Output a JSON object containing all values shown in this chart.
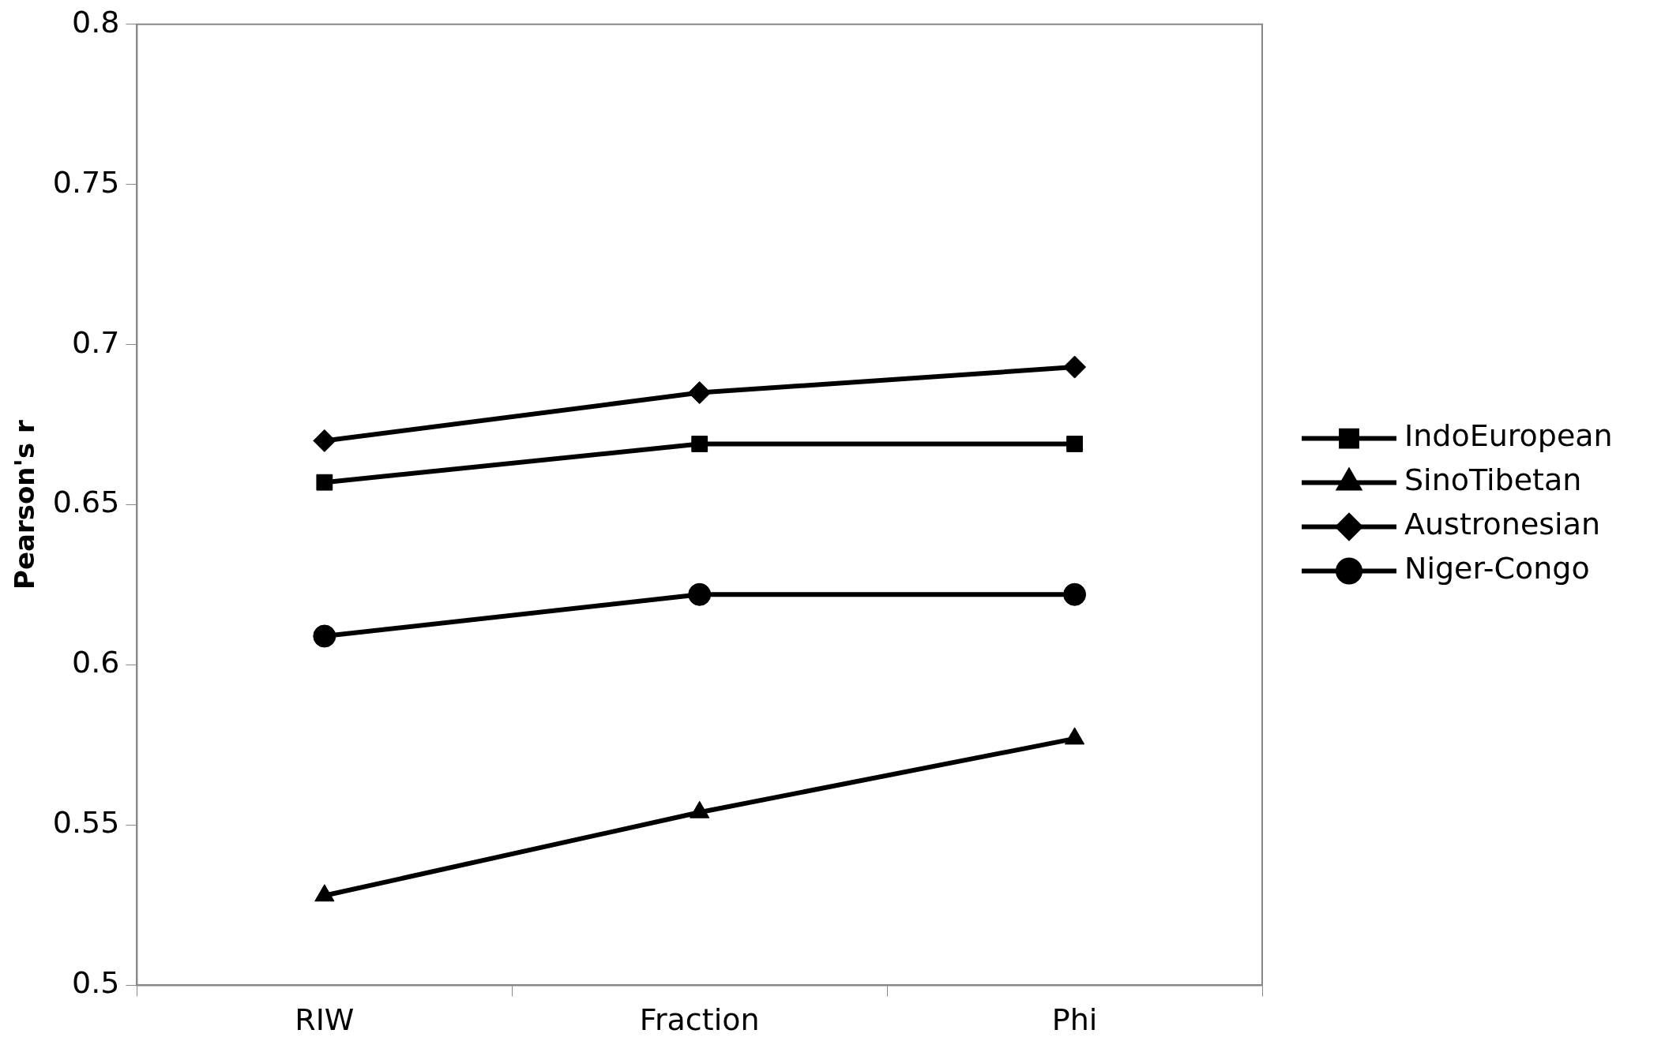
{
  "chart_data": {
    "type": "line",
    "ylabel": "Pearson's r",
    "categories": [
      "RIW",
      "Fraction",
      "Phi"
    ],
    "series": [
      {
        "name": "IndoEuropean",
        "color": "#000000",
        "marker": "square",
        "values": [
          0.657,
          0.669,
          0.669
        ]
      },
      {
        "name": "SinoTibetan",
        "color": "#000000",
        "marker": "triangle",
        "values": [
          0.528,
          0.554,
          0.577
        ]
      },
      {
        "name": "Austronesian",
        "color": "#000000",
        "marker": "diamond",
        "values": [
          0.67,
          0.685,
          0.693
        ]
      },
      {
        "name": "Niger-Congo",
        "color": "#000000",
        "marker": "circle",
        "values": [
          0.609,
          0.622,
          0.622
        ]
      }
    ],
    "ylim": [
      0.5,
      0.8
    ],
    "yticks": [
      0.5,
      0.55,
      0.6,
      0.65,
      0.7,
      0.75,
      0.8
    ],
    "grid": false,
    "legend": "right"
  }
}
